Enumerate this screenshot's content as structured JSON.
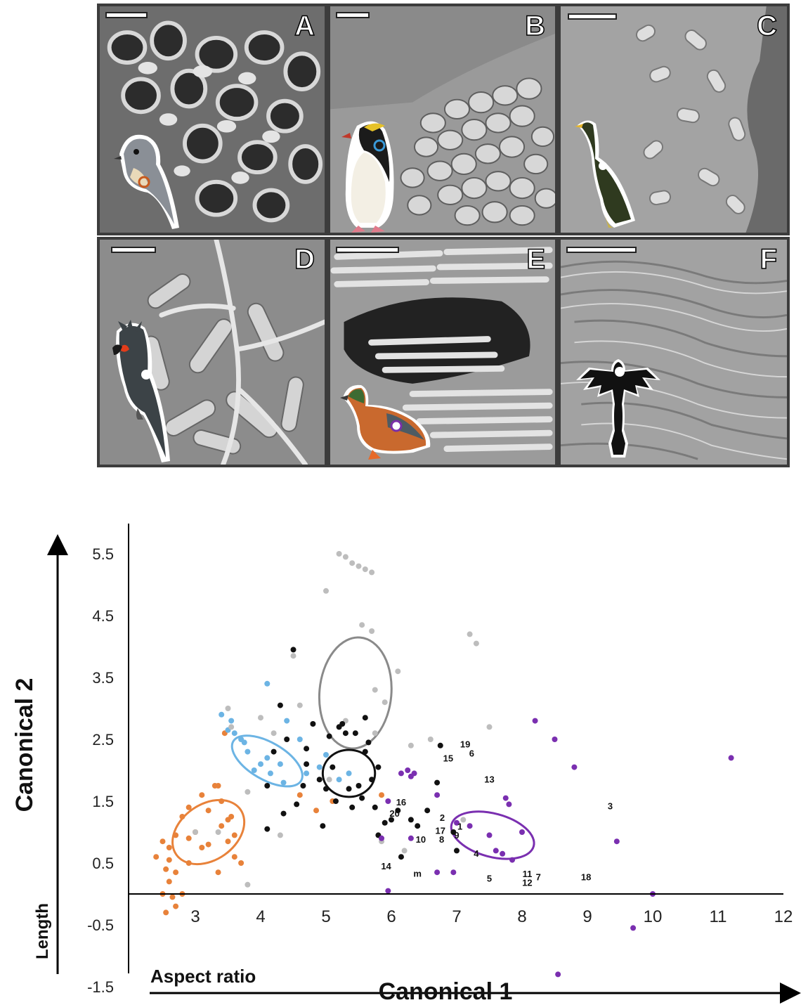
{
  "figure": {
    "panels": [
      {
        "label": "A",
        "bird_icon": "tufted-titmouse-icon",
        "marker_color": "#c85a1e"
      },
      {
        "label": "B",
        "bird_icon": "rockhopper-penguin-icon",
        "marker_color": "#3a9ad9"
      },
      {
        "label": "C",
        "bird_icon": "cormorant-icon",
        "marker_color": "#ffffff"
      },
      {
        "label": "D",
        "bird_icon": "palm-cockatoo-icon",
        "marker_color": "#ffffff"
      },
      {
        "label": "E",
        "bird_icon": "teal-duck-icon",
        "marker_color": "#7a2fa8"
      },
      {
        "label": "F",
        "bird_icon": "fossil-bird-silhouette-icon",
        "marker_color": "#ffffff"
      }
    ]
  },
  "chart_data": {
    "type": "scatter",
    "xlabel": "Canonical 1",
    "ylabel": "Canonical 2",
    "x_arrow_label": "Aspect ratio",
    "y_arrow_label": "Length",
    "xlim": [
      2,
      12
    ],
    "ylim": [
      -1.5,
      5.5
    ],
    "x_ticks": [
      "3",
      "4",
      "5",
      "6",
      "7",
      "8",
      "9",
      "10",
      "11",
      "12"
    ],
    "y_ticks": [
      "5.5",
      "4.5",
      "3.5",
      "2.5",
      "1.5",
      "0.5",
      "-0.5",
      "-1.5"
    ],
    "colors": {
      "orange": "#e8823a",
      "blue": "#6cb4e4",
      "grey": "#bdbdbd",
      "black": "#111111",
      "purple": "#7a2fb0",
      "ellipse_grey": "#8a8a8a"
    },
    "series": [
      {
        "color": "orange",
        "points": [
          [
            2.5,
            0.85
          ],
          [
            2.6,
            0.75
          ],
          [
            2.7,
            0.95
          ],
          [
            2.8,
            1.25
          ],
          [
            2.9,
            0.9
          ],
          [
            2.9,
            1.4
          ],
          [
            3.0,
            1.0
          ],
          [
            3.1,
            1.6
          ],
          [
            3.2,
            1.35
          ],
          [
            3.3,
            1.75
          ],
          [
            3.35,
            1.75
          ],
          [
            3.1,
            0.75
          ],
          [
            3.2,
            0.8
          ],
          [
            3.4,
            1.1
          ],
          [
            3.5,
            1.2
          ],
          [
            3.5,
            0.85
          ],
          [
            3.6,
            0.95
          ],
          [
            3.6,
            0.6
          ],
          [
            3.7,
            0.5
          ],
          [
            3.4,
            1.5
          ],
          [
            3.35,
            0.35
          ],
          [
            2.6,
            0.55
          ],
          [
            2.7,
            0.35
          ],
          [
            2.5,
            0.0
          ],
          [
            2.55,
            -0.3
          ],
          [
            2.6,
            0.2
          ],
          [
            2.7,
            -0.2
          ],
          [
            2.8,
            0.0
          ],
          [
            2.4,
            0.6
          ],
          [
            2.55,
            0.4
          ],
          [
            3.45,
            2.6
          ],
          [
            4.6,
            1.6
          ],
          [
            4.85,
            1.35
          ],
          [
            5.1,
            1.5
          ],
          [
            5.85,
            1.6
          ],
          [
            2.9,
            0.5
          ],
          [
            3.55,
            1.25
          ],
          [
            2.65,
            -0.05
          ]
        ]
      },
      {
        "color": "blue",
        "points": [
          [
            3.4,
            2.9
          ],
          [
            3.5,
            2.65
          ],
          [
            3.55,
            2.8
          ],
          [
            3.6,
            2.6
          ],
          [
            3.7,
            2.5
          ],
          [
            3.8,
            2.3
          ],
          [
            3.9,
            2.0
          ],
          [
            4.0,
            2.1
          ],
          [
            4.1,
            2.2
          ],
          [
            4.15,
            1.95
          ],
          [
            4.1,
            3.4
          ],
          [
            4.3,
            2.1
          ],
          [
            4.4,
            2.8
          ],
          [
            4.6,
            2.5
          ],
          [
            4.7,
            1.95
          ],
          [
            4.9,
            2.05
          ],
          [
            5.0,
            2.25
          ],
          [
            5.2,
            1.85
          ],
          [
            5.35,
            1.95
          ],
          [
            3.75,
            2.45
          ],
          [
            4.35,
            1.8
          ]
        ]
      },
      {
        "color": "grey",
        "points": [
          [
            5.2,
            5.5
          ],
          [
            5.3,
            5.45
          ],
          [
            5.4,
            5.35
          ],
          [
            5.5,
            5.3
          ],
          [
            5.6,
            5.25
          ],
          [
            5.7,
            5.2
          ],
          [
            5.0,
            4.9
          ],
          [
            5.55,
            4.35
          ],
          [
            5.7,
            4.25
          ],
          [
            5.75,
            3.3
          ],
          [
            5.9,
            3.1
          ],
          [
            6.1,
            3.6
          ],
          [
            4.5,
            3.85
          ],
          [
            4.6,
            3.05
          ],
          [
            4.0,
            2.85
          ],
          [
            4.2,
            2.6
          ],
          [
            3.55,
            2.7
          ],
          [
            3.5,
            3.0
          ],
          [
            3.8,
            1.65
          ],
          [
            3.35,
            1.0
          ],
          [
            3.0,
            1.0
          ],
          [
            3.8,
            0.15
          ],
          [
            4.3,
            0.95
          ],
          [
            5.05,
            1.85
          ],
          [
            5.3,
            2.8
          ],
          [
            5.75,
            2.6
          ],
          [
            6.6,
            2.5
          ],
          [
            7.2,
            4.2
          ],
          [
            7.3,
            4.05
          ],
          [
            7.5,
            2.7
          ],
          [
            6.3,
            2.4
          ],
          [
            6.2,
            0.7
          ],
          [
            7.1,
            1.2
          ],
          [
            5.85,
            0.85
          ]
        ]
      },
      {
        "color": "black",
        "points": [
          [
            4.5,
            3.95
          ],
          [
            4.3,
            3.05
          ],
          [
            4.4,
            2.5
          ],
          [
            4.2,
            2.3
          ],
          [
            4.1,
            1.75
          ],
          [
            4.35,
            1.3
          ],
          [
            4.1,
            1.05
          ],
          [
            4.55,
            1.45
          ],
          [
            4.65,
            1.75
          ],
          [
            4.7,
            2.35
          ],
          [
            4.8,
            2.75
          ],
          [
            4.9,
            1.85
          ],
          [
            4.95,
            1.1
          ],
          [
            5.05,
            2.55
          ],
          [
            5.1,
            2.05
          ],
          [
            5.15,
            1.5
          ],
          [
            5.2,
            2.7
          ],
          [
            5.25,
            2.75
          ],
          [
            5.3,
            2.6
          ],
          [
            5.35,
            1.7
          ],
          [
            5.4,
            1.4
          ],
          [
            5.45,
            2.6
          ],
          [
            5.5,
            1.75
          ],
          [
            5.55,
            1.55
          ],
          [
            5.6,
            2.85
          ],
          [
            5.65,
            2.45
          ],
          [
            5.7,
            1.85
          ],
          [
            5.75,
            1.4
          ],
          [
            5.8,
            2.05
          ],
          [
            5.9,
            1.15
          ],
          [
            6.0,
            1.2
          ],
          [
            6.1,
            1.35
          ],
          [
            6.3,
            1.2
          ],
          [
            6.4,
            1.1
          ],
          [
            6.55,
            1.35
          ],
          [
            6.7,
            1.8
          ],
          [
            6.75,
            2.4
          ],
          [
            6.95,
            1.0
          ],
          [
            7.0,
            0.7
          ],
          [
            5.8,
            0.95
          ],
          [
            4.7,
            2.1
          ],
          [
            5.0,
            1.7
          ],
          [
            5.6,
            2.3
          ],
          [
            6.15,
            0.6
          ]
        ]
      },
      {
        "color": "purple",
        "points": [
          [
            5.95,
            1.5
          ],
          [
            6.15,
            1.95
          ],
          [
            6.25,
            2.0
          ],
          [
            6.3,
            1.9
          ],
          [
            6.35,
            1.95
          ],
          [
            6.7,
            1.6
          ],
          [
            7.0,
            1.15
          ],
          [
            7.2,
            1.1
          ],
          [
            7.5,
            0.95
          ],
          [
            7.6,
            0.7
          ],
          [
            7.7,
            0.65
          ],
          [
            7.75,
            1.55
          ],
          [
            7.8,
            1.45
          ],
          [
            7.85,
            0.55
          ],
          [
            8.0,
            1.0
          ],
          [
            8.2,
            2.8
          ],
          [
            8.5,
            2.5
          ],
          [
            8.8,
            2.05
          ],
          [
            9.45,
            0.85
          ],
          [
            10.0,
            0.0
          ],
          [
            9.7,
            -0.55
          ],
          [
            11.2,
            2.2
          ],
          [
            8.55,
            -1.3
          ],
          [
            6.7,
            0.35
          ],
          [
            6.95,
            0.35
          ],
          [
            5.95,
            0.05
          ],
          [
            5.85,
            0.9
          ],
          [
            6.3,
            0.9
          ]
        ]
      }
    ],
    "ellipses": [
      {
        "color": "orange",
        "cx": 3.2,
        "cy": 1.0,
        "rx": 0.6,
        "ry": 0.45,
        "rotation": -35
      },
      {
        "color": "blue",
        "cx": 4.1,
        "cy": 2.15,
        "rx": 0.6,
        "ry": 0.3,
        "rotation": 30
      },
      {
        "color": "grey",
        "cx": 5.45,
        "cy": 3.25,
        "rx": 0.55,
        "ry": 0.9,
        "rotation": 5
      },
      {
        "color": "black",
        "cx": 5.35,
        "cy": 1.95,
        "rx": 0.4,
        "ry": 0.38,
        "rotation": 0
      },
      {
        "color": "purple",
        "cx": 7.55,
        "cy": 0.95,
        "rx": 0.65,
        "ry": 0.35,
        "rotation": 15
      }
    ],
    "point_labels": [
      {
        "text": "19",
        "x": 7.13,
        "y": 2.37
      },
      {
        "text": "6",
        "x": 7.23,
        "y": 2.22
      },
      {
        "text": "15",
        "x": 6.87,
        "y": 2.14
      },
      {
        "text": "13",
        "x": 7.5,
        "y": 1.8
      },
      {
        "text": "16",
        "x": 6.15,
        "y": 1.43
      },
      {
        "text": "20",
        "x": 6.05,
        "y": 1.25
      },
      {
        "text": "2",
        "x": 6.78,
        "y": 1.18
      },
      {
        "text": "1",
        "x": 7.05,
        "y": 1.04
      },
      {
        "text": "17",
        "x": 6.75,
        "y": 0.97
      },
      {
        "text": "9",
        "x": 7.0,
        "y": 0.9
      },
      {
        "text": "8",
        "x": 6.77,
        "y": 0.83
      },
      {
        "text": "10",
        "x": 6.45,
        "y": 0.83
      },
      {
        "text": "4",
        "x": 7.3,
        "y": 0.6
      },
      {
        "text": "14",
        "x": 5.92,
        "y": 0.4
      },
      {
        "text": "m",
        "x": 6.4,
        "y": 0.28
      },
      {
        "text": "5",
        "x": 7.5,
        "y": 0.2
      },
      {
        "text": "11",
        "x": 8.08,
        "y": 0.27
      },
      {
        "text": "7",
        "x": 8.25,
        "y": 0.22
      },
      {
        "text": "12",
        "x": 8.08,
        "y": 0.13
      },
      {
        "text": "18",
        "x": 8.98,
        "y": 0.22
      },
      {
        "text": "3",
        "x": 9.35,
        "y": 1.37
      }
    ]
  }
}
